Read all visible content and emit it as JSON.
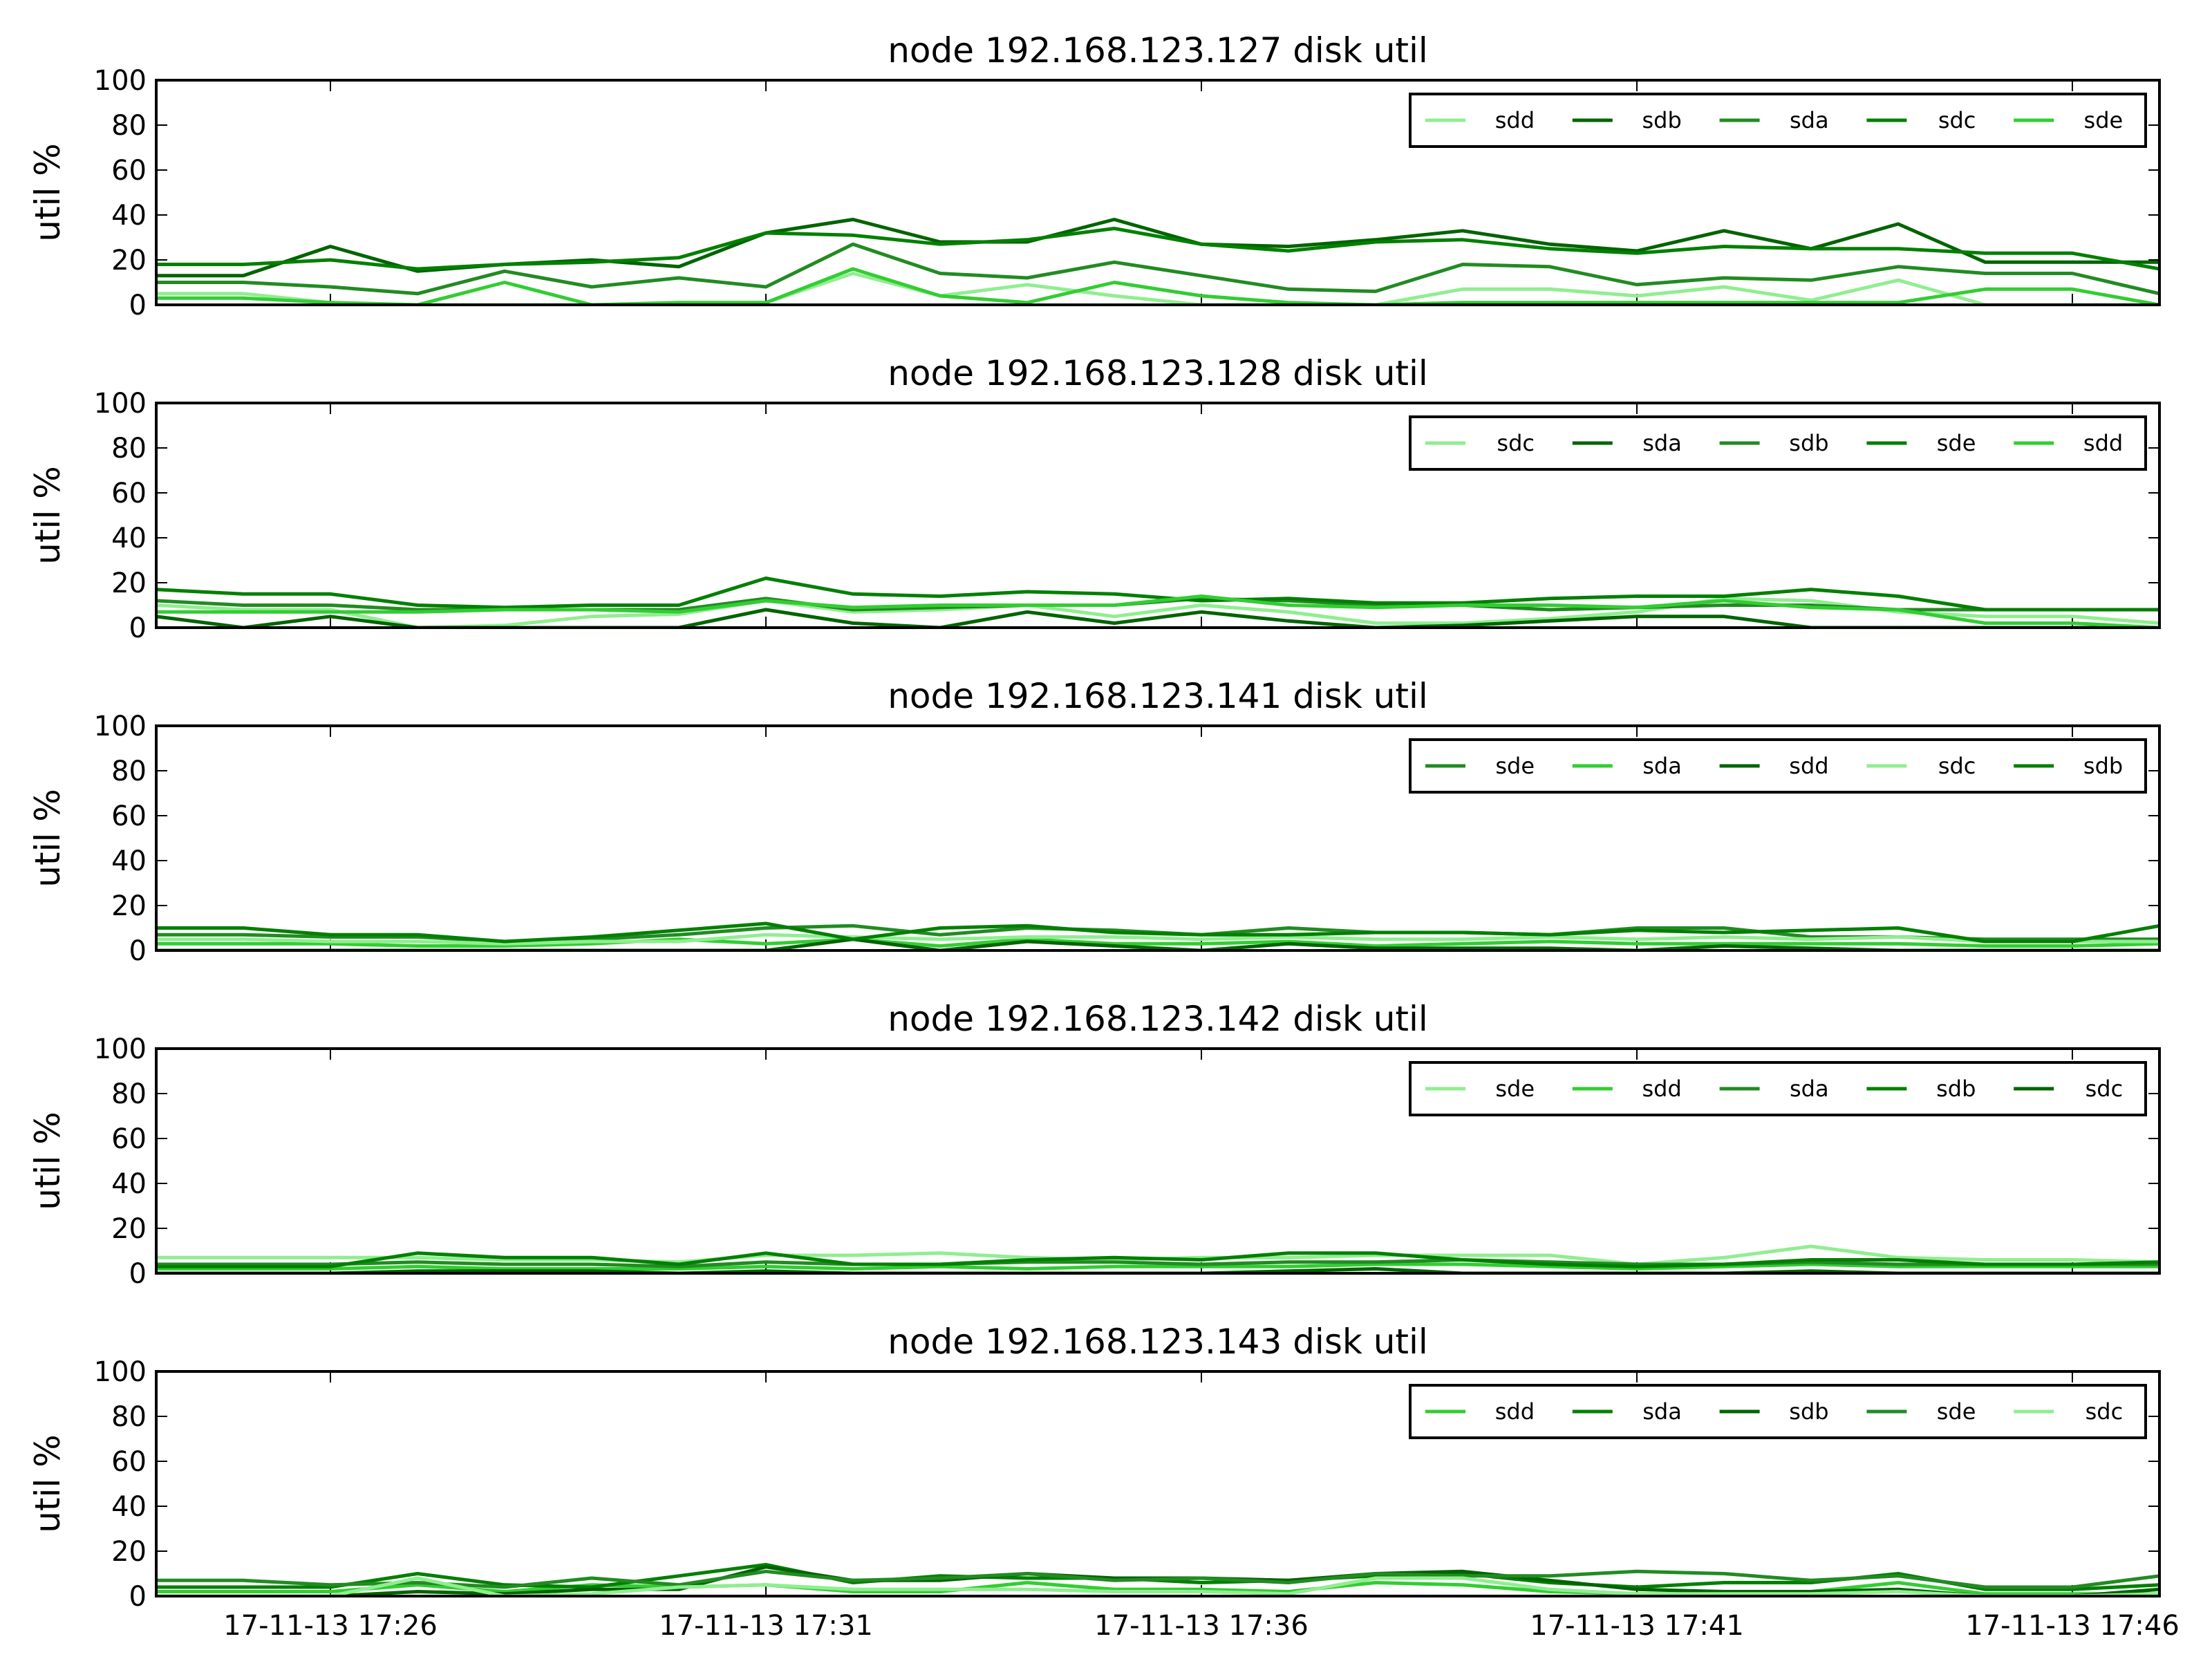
{
  "chart_data": [
    {
      "type": "line",
      "title": "node 192.168.123.127 disk util",
      "ylabel": "util %",
      "xlabel": "",
      "ylim": [
        0,
        100
      ],
      "yticks": [
        "0",
        "20",
        "40",
        "60",
        "80",
        "100"
      ],
      "x": [
        "17:24",
        "17:25",
        "17:26",
        "17:27",
        "17:28",
        "17:29",
        "17:30",
        "17:31",
        "17:32",
        "17:33",
        "17:34",
        "17:35",
        "17:36",
        "17:37",
        "17:38",
        "17:39",
        "17:40",
        "17:41",
        "17:42",
        "17:43",
        "17:44",
        "17:45",
        "17:46",
        "17:47"
      ],
      "legend_position": "top-right",
      "series": [
        {
          "name": "sdd",
          "color": "#90ee90",
          "values": [
            5,
            5,
            1,
            0,
            0,
            0,
            0,
            1,
            14,
            4,
            9,
            4,
            0,
            0,
            0,
            7,
            7,
            4,
            8,
            2,
            11,
            0,
            0,
            0
          ]
        },
        {
          "name": "sdb",
          "color": "#006400",
          "values": [
            13,
            13,
            26,
            15,
            18,
            20,
            17,
            32,
            38,
            28,
            28,
            38,
            27,
            26,
            29,
            33,
            27,
            24,
            33,
            25,
            36,
            19,
            19,
            19
          ]
        },
        {
          "name": "sda",
          "color": "#228b22",
          "values": [
            10,
            10,
            8,
            5,
            15,
            8,
            12,
            8,
            27,
            14,
            12,
            19,
            13,
            7,
            6,
            18,
            17,
            9,
            12,
            11,
            17,
            14,
            14,
            5
          ]
        },
        {
          "name": "sdc",
          "color": "#008000",
          "values": [
            18,
            18,
            20,
            16,
            18,
            19,
            21,
            32,
            31,
            27,
            29,
            34,
            27,
            24,
            28,
            29,
            25,
            23,
            26,
            25,
            25,
            23,
            23,
            16
          ]
        },
        {
          "name": "sde",
          "color": "#32cd32",
          "values": [
            3,
            3,
            1,
            0,
            10,
            0,
            1,
            1,
            16,
            4,
            1,
            10,
            4,
            1,
            0,
            1,
            1,
            1,
            1,
            1,
            1,
            7,
            7,
            0
          ]
        }
      ]
    },
    {
      "type": "line",
      "title": "node 192.168.123.128 disk util",
      "ylabel": "util %",
      "xlabel": "",
      "ylim": [
        0,
        100
      ],
      "yticks": [
        "0",
        "20",
        "40",
        "60",
        "80",
        "100"
      ],
      "x": [
        "17:24",
        "17:25",
        "17:26",
        "17:27",
        "17:28",
        "17:29",
        "17:30",
        "17:31",
        "17:32",
        "17:33",
        "17:34",
        "17:35",
        "17:36",
        "17:37",
        "17:38",
        "17:39",
        "17:40",
        "17:41",
        "17:42",
        "17:43",
        "17:44",
        "17:45",
        "17:46",
        "17:47"
      ],
      "legend_position": "top-right",
      "series": [
        {
          "name": "sdc",
          "color": "#90ee90",
          "values": [
            10,
            8,
            8,
            0,
            1,
            5,
            6,
            12,
            7,
            8,
            10,
            5,
            10,
            7,
            2,
            2,
            4,
            7,
            13,
            12,
            7,
            5,
            5,
            2
          ]
        },
        {
          "name": "sda",
          "color": "#006400",
          "values": [
            5,
            0,
            5,
            0,
            0,
            0,
            0,
            8,
            2,
            0,
            7,
            2,
            7,
            3,
            0,
            1,
            3,
            5,
            5,
            0,
            0,
            0,
            0,
            0
          ]
        },
        {
          "name": "sdb",
          "color": "#228b22",
          "values": [
            12,
            10,
            10,
            8,
            8,
            8,
            8,
            13,
            8,
            9,
            10,
            10,
            13,
            12,
            10,
            10,
            8,
            9,
            10,
            10,
            8,
            8,
            8,
            8
          ]
        },
        {
          "name": "sde",
          "color": "#008000",
          "values": [
            17,
            15,
            15,
            10,
            9,
            10,
            10,
            22,
            15,
            14,
            16,
            15,
            12,
            13,
            11,
            11,
            13,
            14,
            14,
            17,
            14,
            8,
            8,
            8
          ]
        },
        {
          "name": "sdd",
          "color": "#32cd32",
          "values": [
            7,
            7,
            7,
            7,
            8,
            8,
            7,
            12,
            9,
            10,
            10,
            10,
            14,
            10,
            9,
            10,
            10,
            9,
            12,
            9,
            8,
            2,
            2,
            0
          ]
        }
      ]
    },
    {
      "type": "line",
      "title": "node 192.168.123.141 disk util",
      "ylabel": "util %",
      "xlabel": "",
      "ylim": [
        0,
        100
      ],
      "yticks": [
        "0",
        "20",
        "40",
        "60",
        "80",
        "100"
      ],
      "x": [
        "17:24",
        "17:25",
        "17:26",
        "17:27",
        "17:28",
        "17:29",
        "17:30",
        "17:31",
        "17:32",
        "17:33",
        "17:34",
        "17:35",
        "17:36",
        "17:37",
        "17:38",
        "17:39",
        "17:40",
        "17:41",
        "17:42",
        "17:43",
        "17:44",
        "17:45",
        "17:46",
        "17:47"
      ],
      "legend_position": "top-right",
      "series": [
        {
          "name": "sde",
          "color": "#228b22",
          "values": [
            7,
            7,
            6,
            6,
            4,
            5,
            7,
            10,
            11,
            7,
            10,
            9,
            7,
            10,
            8,
            8,
            7,
            10,
            10,
            6,
            6,
            5,
            5,
            5
          ]
        },
        {
          "name": "sda",
          "color": "#32cd32",
          "values": [
            3,
            3,
            3,
            2,
            2,
            3,
            5,
            3,
            5,
            2,
            5,
            3,
            3,
            4,
            2,
            3,
            4,
            3,
            3,
            3,
            3,
            2,
            2,
            3
          ]
        },
        {
          "name": "sdd",
          "color": "#006400",
          "values": [
            0,
            0,
            0,
            0,
            0,
            0,
            0,
            0,
            5,
            0,
            4,
            2,
            0,
            3,
            1,
            1,
            1,
            0,
            2,
            1,
            0,
            0,
            0,
            0
          ]
        },
        {
          "name": "sdc",
          "color": "#90ee90",
          "values": [
            5,
            5,
            4,
            4,
            3,
            4,
            4,
            7,
            6,
            5,
            6,
            6,
            5,
            6,
            5,
            5,
            6,
            5,
            6,
            5,
            6,
            4,
            4,
            4
          ]
        },
        {
          "name": "sdb",
          "color": "#008000",
          "values": [
            10,
            10,
            7,
            7,
            4,
            6,
            9,
            12,
            5,
            10,
            11,
            8,
            7,
            7,
            8,
            8,
            7,
            9,
            8,
            9,
            10,
            4,
            4,
            11
          ]
        }
      ]
    },
    {
      "type": "line",
      "title": "node 192.168.123.142 disk util",
      "ylabel": "util %",
      "xlabel": "",
      "ylim": [
        0,
        100
      ],
      "yticks": [
        "0",
        "20",
        "40",
        "60",
        "80",
        "100"
      ],
      "x": [
        "17:24",
        "17:25",
        "17:26",
        "17:27",
        "17:28",
        "17:29",
        "17:30",
        "17:31",
        "17:32",
        "17:33",
        "17:34",
        "17:35",
        "17:36",
        "17:37",
        "17:38",
        "17:39",
        "17:40",
        "17:41",
        "17:42",
        "17:43",
        "17:44",
        "17:45",
        "17:46",
        "17:47"
      ],
      "legend_position": "top-right",
      "series": [
        {
          "name": "sde",
          "color": "#90ee90",
          "values": [
            7,
            7,
            7,
            7,
            6,
            6,
            5,
            8,
            8,
            9,
            7,
            6,
            7,
            7,
            8,
            8,
            8,
            4,
            7,
            12,
            7,
            6,
            6,
            5
          ]
        },
        {
          "name": "sdd",
          "color": "#32cd32",
          "values": [
            2,
            2,
            2,
            3,
            2,
            2,
            2,
            3,
            2,
            3,
            2,
            3,
            3,
            3,
            4,
            4,
            3,
            2,
            3,
            4,
            3,
            3,
            3,
            3
          ]
        },
        {
          "name": "sda",
          "color": "#228b22",
          "values": [
            4,
            4,
            4,
            5,
            4,
            4,
            3,
            5,
            4,
            4,
            5,
            5,
            4,
            5,
            5,
            6,
            5,
            4,
            4,
            5,
            4,
            4,
            4,
            4
          ]
        },
        {
          "name": "sdb",
          "color": "#008000",
          "values": [
            3,
            3,
            3,
            9,
            7,
            7,
            4,
            9,
            4,
            4,
            6,
            7,
            6,
            9,
            9,
            6,
            4,
            3,
            4,
            6,
            6,
            4,
            4,
            5
          ]
        },
        {
          "name": "sdc",
          "color": "#006400",
          "values": [
            0,
            0,
            0,
            1,
            1,
            1,
            0,
            1,
            0,
            0,
            0,
            0,
            0,
            1,
            2,
            0,
            0,
            0,
            0,
            1,
            0,
            0,
            0,
            0
          ]
        }
      ]
    },
    {
      "type": "line",
      "title": "node 192.168.123.143 disk util",
      "ylabel": "util %",
      "xlabel": "",
      "ylim": [
        0,
        100
      ],
      "yticks": [
        "0",
        "20",
        "40",
        "60",
        "80",
        "100"
      ],
      "x": [
        "17:24",
        "17:25",
        "17:26",
        "17:27",
        "17:28",
        "17:29",
        "17:30",
        "17:31",
        "17:32",
        "17:33",
        "17:34",
        "17:35",
        "17:36",
        "17:37",
        "17:38",
        "17:39",
        "17:40",
        "17:41",
        "17:42",
        "17:43",
        "17:44",
        "17:45",
        "17:46",
        "17:47"
      ],
      "xticks": [
        "17-11-13 17:26",
        "17-11-13 17:31",
        "17-11-13 17:36",
        "17-11-13 17:41",
        "17-11-13 17:46"
      ],
      "legend_position": "top-right",
      "series": [
        {
          "name": "sdd",
          "color": "#32cd32",
          "values": [
            2,
            2,
            2,
            5,
            2,
            5,
            4,
            5,
            2,
            2,
            6,
            3,
            3,
            2,
            6,
            5,
            2,
            1,
            1,
            2,
            6,
            1,
            1,
            1
          ]
        },
        {
          "name": "sda",
          "color": "#008000",
          "values": [
            4,
            4,
            4,
            10,
            5,
            4,
            9,
            14,
            6,
            9,
            8,
            8,
            6,
            7,
            9,
            10,
            6,
            4,
            6,
            6,
            10,
            3,
            3,
            5
          ]
        },
        {
          "name": "sdb",
          "color": "#006400",
          "values": [
            0,
            0,
            0,
            2,
            1,
            3,
            3,
            13,
            7,
            7,
            10,
            8,
            8,
            7,
            10,
            11,
            7,
            3,
            2,
            2,
            3,
            0,
            0,
            3
          ]
        },
        {
          "name": "sde",
          "color": "#228b22",
          "values": [
            7,
            7,
            5,
            6,
            4,
            8,
            5,
            11,
            7,
            8,
            10,
            7,
            8,
            6,
            10,
            9,
            9,
            11,
            10,
            7,
            9,
            4,
            4,
            9
          ]
        },
        {
          "name": "sdc",
          "color": "#90ee90",
          "values": [
            0,
            0,
            0,
            8,
            0,
            1,
            4,
            5,
            3,
            3,
            3,
            2,
            2,
            1,
            8,
            8,
            3,
            1,
            1,
            1,
            2,
            0,
            0,
            1
          ]
        }
      ]
    }
  ]
}
